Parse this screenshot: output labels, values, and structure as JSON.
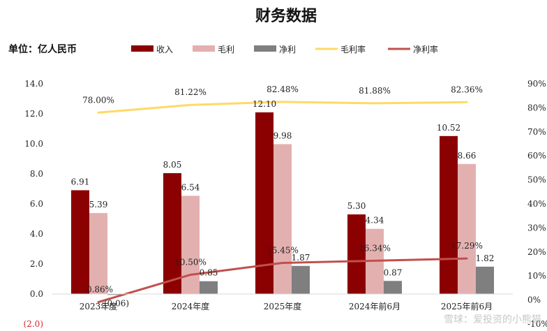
{
  "chart_data": {
    "type": "bar",
    "title": "财务数据",
    "unit_label": "单位：亿人民币",
    "categories": [
      "2023年度",
      "2024年度",
      "2025年度",
      "2024年前6月",
      "2025年前6月"
    ],
    "series": [
      {
        "name": "收入",
        "kind": "bar",
        "axis": "left",
        "color": "#8b0000",
        "values": [
          6.91,
          8.05,
          12.1,
          5.3,
          10.52
        ],
        "labels": [
          "6.91",
          "8.05",
          "12.10",
          "5.30",
          "10.52"
        ]
      },
      {
        "name": "毛利",
        "kind": "bar",
        "axis": "left",
        "color": "#e3b0b0",
        "values": [
          5.39,
          6.54,
          9.98,
          4.34,
          8.66
        ],
        "labels": [
          "5.39",
          "6.54",
          "9.98",
          "4.34",
          "8.66"
        ]
      },
      {
        "name": "净利",
        "kind": "bar",
        "axis": "left",
        "color": "#7f7f7f",
        "values": [
          -0.06,
          0.85,
          1.87,
          0.87,
          1.82
        ],
        "labels": [
          "(0.06)",
          "0.85",
          "1.87",
          "0.87",
          "1.82"
        ]
      },
      {
        "name": "毛利率",
        "kind": "line",
        "axis": "right",
        "color": "#ffd966",
        "values": [
          78.0,
          81.22,
          82.48,
          81.88,
          82.36
        ],
        "labels": [
          "78.00%",
          "81.22%",
          "82.48%",
          "81.88%",
          "82.36%"
        ]
      },
      {
        "name": "净利率",
        "kind": "line",
        "axis": "right",
        "color": "#c0504d",
        "values": [
          -0.86,
          10.5,
          15.45,
          16.34,
          17.29
        ],
        "labels": [
          "-0.86%",
          "10.50%",
          "15.45%",
          "16.34%",
          "17.29%"
        ]
      }
    ],
    "left_axis": {
      "ylim": [
        -2.0,
        14.0
      ],
      "ticks": [
        "(2.0)",
        "0.0",
        "2.0",
        "4.0",
        "6.0",
        "8.0",
        "10.0",
        "12.0",
        "14.0"
      ]
    },
    "right_axis": {
      "ylim": [
        -10,
        90
      ],
      "ticks": [
        "-10%",
        "0%",
        "10%",
        "20%",
        "30%",
        "40%",
        "50%",
        "60%",
        "70%",
        "80%",
        "90%"
      ]
    },
    "legend_position": "top",
    "grid": false
  },
  "watermark": "雪球：爱投资的小熊猫"
}
